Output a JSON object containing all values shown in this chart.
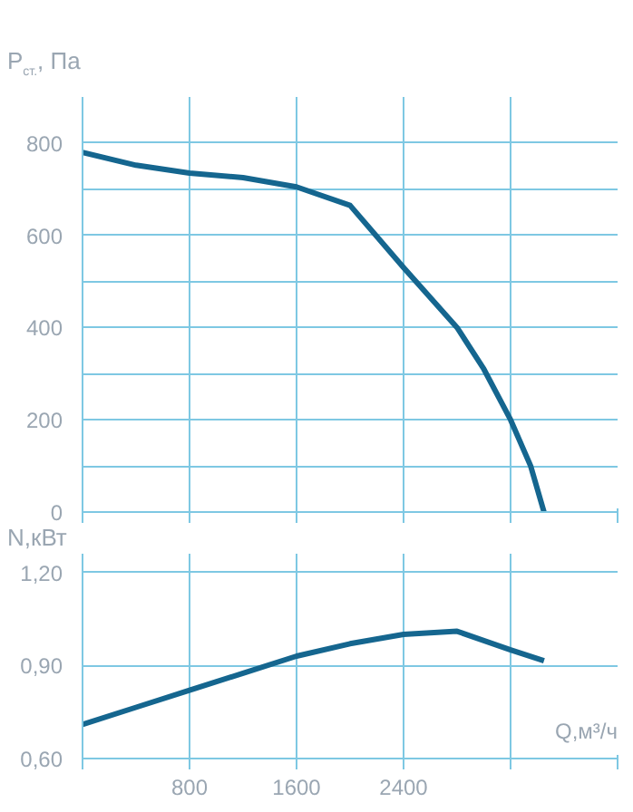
{
  "chart_data": [
    {
      "type": "line",
      "ylabel": "P$_{ст.}$, Па",
      "x": [
        0,
        400,
        800,
        1200,
        1600,
        2000,
        2400,
        2800,
        3000,
        3200,
        3350,
        3450
      ],
      "series": [
        {
          "color": "#15668f",
          "values": [
            780,
            752,
            735,
            725,
            705,
            665,
            530,
            400,
            310,
            200,
            100,
            0
          ]
        }
      ],
      "xlim": [
        0,
        4000
      ],
      "ylim": [
        0,
        900
      ],
      "xticks": [
        {
          "value": 0,
          "label": null
        },
        {
          "value": 800,
          "label": null
        },
        {
          "value": 1600,
          "label": null
        },
        {
          "value": 2400,
          "label": null
        },
        {
          "value": 3200,
          "label": null
        },
        {
          "value": 4000,
          "label": null
        }
      ],
      "yticks": [
        0,
        {
          "value": 100,
          "label": null
        },
        200,
        {
          "value": 300,
          "label": null
        },
        400,
        {
          "value": 500,
          "label": null
        },
        600,
        {
          "value": 700,
          "label": null
        },
        800
      ],
      "grid": true,
      "tick_labels": "y"
    },
    {
      "type": "line",
      "ylabel": "N,кВт",
      "xlabel": "Q,м³/ч",
      "x": [
        0,
        400,
        800,
        1200,
        1600,
        2000,
        2400,
        2800,
        3000,
        3200,
        3450
      ],
      "series": [
        {
          "color": "#15668f",
          "values": [
            0.71,
            0.765,
            0.82,
            0.875,
            0.93,
            0.97,
            1.0,
            1.01,
            0.98,
            0.95,
            0.915
          ]
        }
      ],
      "xlim": [
        0,
        4000
      ],
      "ylim": [
        0.6,
        1.26
      ],
      "xticks": [
        {
          "value": 0,
          "label": null
        },
        800,
        1600,
        2400,
        {
          "value": 3200,
          "label": null
        },
        {
          "value": 4000,
          "label": null
        }
      ],
      "yticks": [
        {
          "value": 0.6,
          "label": "0,60"
        },
        {
          "value": 0.9,
          "label": "0,90"
        },
        {
          "value": 1.2,
          "label": "1,20"
        }
      ],
      "grid": true
    }
  ]
}
